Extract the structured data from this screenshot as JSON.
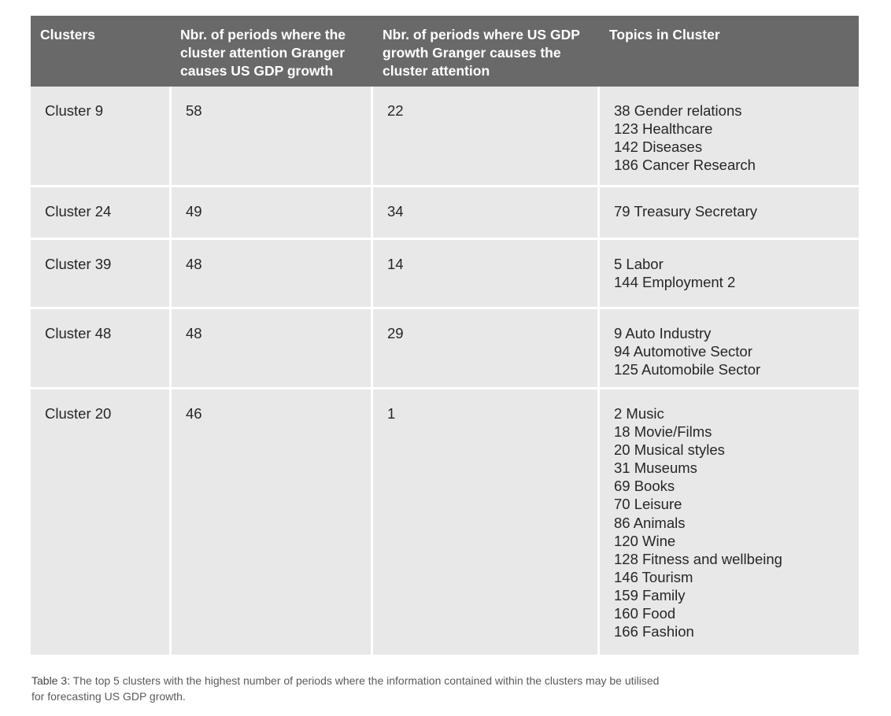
{
  "table": {
    "headers": [
      "Clusters",
      "Nbr. of periods where the cluster attention Granger causes US GDP growth",
      "Nbr. of periods where US GDP growth  Granger causes the cluster attention",
      "Topics in Cluster"
    ],
    "rows": [
      {
        "cluster": "Cluster 9",
        "a": "58",
        "b": "22",
        "topics": [
          "38 Gender relations",
          "123 Healthcare",
          "142 Diseases",
          "186 Cancer Research"
        ]
      },
      {
        "cluster": "Cluster 24",
        "a": "49",
        "b": "34",
        "topics": [
          "79 Treasury Secretary"
        ]
      },
      {
        "cluster": "Cluster 39",
        "a": "48",
        "b": "14",
        "topics": [
          "5 Labor",
          "144 Employment 2"
        ]
      },
      {
        "cluster": "Cluster 48",
        "a": "48",
        "b": "29",
        "topics": [
          "9 Auto Industry",
          "94 Automotive Sector",
          "125 Automobile Sector"
        ]
      },
      {
        "cluster": "Cluster 20",
        "a": "46",
        "b": "1",
        "topics": [
          "2 Music",
          "18 Movie/Films",
          "20 Musical styles",
          "31 Museums",
          "69 Books",
          "70 Leisure",
          "86 Animals",
          "120 Wine",
          "128 Fitness and wellbeing",
          "146 Tourism",
          "159 Family",
          "160 Food",
          "166 Fashion"
        ]
      }
    ]
  },
  "caption": {
    "label": "Table 3:",
    "text": " The top 5 clusters with the highest number of periods where the information contained within the clusters may be utilised for forecasting US GDP growth."
  }
}
